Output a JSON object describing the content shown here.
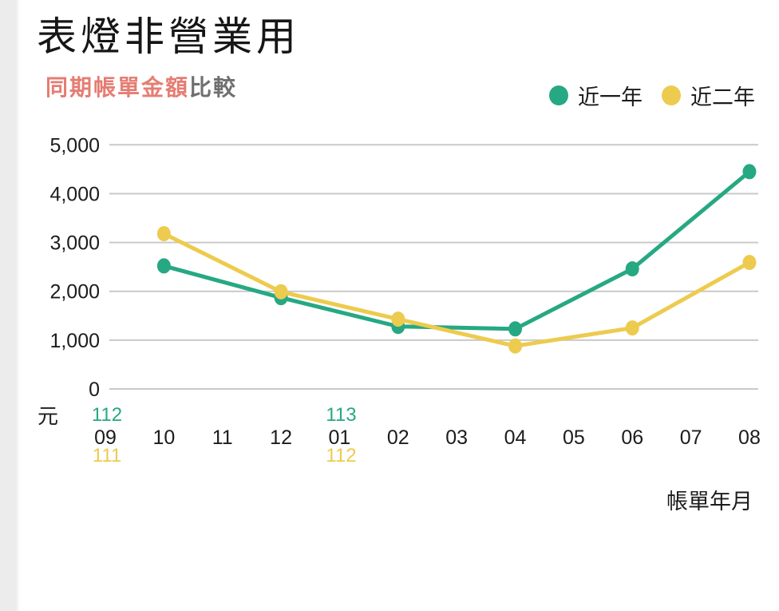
{
  "header": {
    "title": "表燈非營業用",
    "subtitle_highlight": "同期帳單金額",
    "subtitle_rest": "比較"
  },
  "chart_data": {
    "type": "line",
    "title": "同期帳單金額比較",
    "unit_label": "元",
    "xlabel": "帳單年月",
    "ylim": [
      0,
      5000
    ],
    "yticks": [
      0,
      1000,
      2000,
      3000,
      4000,
      5000
    ],
    "ytick_labels": [
      "0",
      "1,000",
      "2,000",
      "3,000",
      "4,000",
      "5,000"
    ],
    "categories": [
      "09",
      "10",
      "11",
      "12",
      "01",
      "02",
      "03",
      "04",
      "05",
      "06",
      "07",
      "08"
    ],
    "year_annotations": [
      {
        "category": "09",
        "top_label": "112",
        "bottom_label": "111"
      },
      {
        "category": "01",
        "top_label": "113",
        "bottom_label": "112"
      }
    ],
    "grid": "horizontal-only",
    "legend_position": "top-right",
    "series": [
      {
        "name": "近一年",
        "color": "#26a883",
        "points": [
          {
            "month": "10",
            "value": 2520
          },
          {
            "month": "12",
            "value": 1870
          },
          {
            "month": "02",
            "value": 1280
          },
          {
            "month": "04",
            "value": 1230
          },
          {
            "month": "06",
            "value": 2460
          },
          {
            "month": "08",
            "value": 4450
          }
        ]
      },
      {
        "name": "近二年",
        "color": "#edcb4e",
        "points": [
          {
            "month": "10",
            "value": 3180
          },
          {
            "month": "12",
            "value": 1990
          },
          {
            "month": "02",
            "value": 1430
          },
          {
            "month": "04",
            "value": 880
          },
          {
            "month": "06",
            "value": 1250
          },
          {
            "month": "08",
            "value": 2590
          }
        ]
      }
    ]
  },
  "colors": {
    "grid_line": "#c9c9c9",
    "tick_text": "#1c1c1c",
    "subtitle_highlight": "#e57d73",
    "subtitle_rest": "#6f6f6f",
    "left_strip": "#ececec"
  }
}
